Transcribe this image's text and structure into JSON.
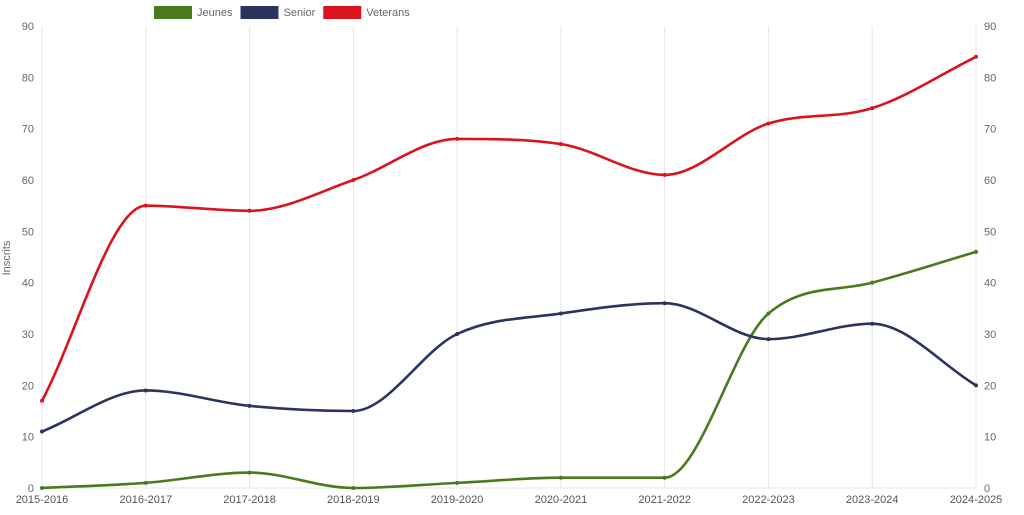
{
  "chart_data": {
    "type": "line",
    "ylabel": "Inscrits",
    "ylim": [
      0,
      90
    ],
    "yticks": [
      0,
      10,
      20,
      30,
      40,
      50,
      60,
      70,
      80,
      90
    ],
    "y2ticks": [
      0,
      10,
      20,
      30,
      40,
      50,
      60,
      70,
      80,
      90
    ],
    "grid": "vertical",
    "legend_position": "top-left",
    "categories": [
      "2015-2016",
      "2016-2017",
      "2017-2018",
      "2018-2019",
      "2019-2020",
      "2020-2021",
      "2021-2022",
      "2022-2023",
      "2023-2024",
      "2024-2025"
    ],
    "series": [
      {
        "name": "Jeunes",
        "color": "#4a7a1e",
        "values": [
          0,
          1,
          3,
          0,
          1,
          2,
          2,
          34,
          40,
          46
        ]
      },
      {
        "name": "Senior",
        "color": "#2b3360",
        "values": [
          11,
          19,
          16,
          15,
          30,
          34,
          36,
          29,
          32,
          20
        ]
      },
      {
        "name": "Veterans",
        "color": "#d9141f",
        "values": [
          17,
          55,
          54,
          60,
          68,
          67,
          61,
          71,
          74,
          84
        ]
      }
    ]
  }
}
